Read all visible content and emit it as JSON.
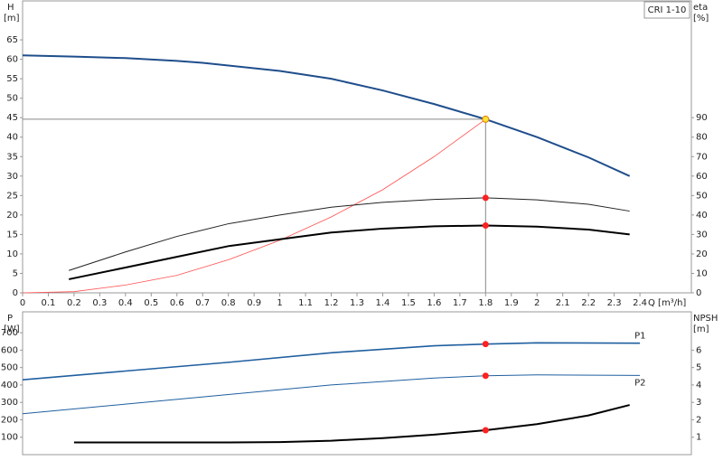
{
  "chart_data": [
    {
      "type": "line",
      "label": "CRI 1-10",
      "ylabel": "H",
      "yunit": "[m]",
      "y2label": "eta",
      "y2unit": "[%]",
      "xlabel": "Q [m³/h]",
      "xlim": [
        0,
        2.6
      ],
      "xticks": [
        0,
        0.1,
        0.2,
        0.3,
        0.4,
        0.5,
        0.6,
        0.7,
        0.8,
        0.9,
        1.0,
        1.1,
        1.2,
        1.3,
        1.4,
        1.5,
        1.6,
        1.7,
        1.8,
        1.9,
        2.0,
        2.1,
        2.2,
        2.3,
        2.4
      ],
      "ylim": [
        0,
        75
      ],
      "yticks": [
        0,
        5,
        10,
        15,
        20,
        25,
        30,
        35,
        40,
        45,
        50,
        55,
        60,
        65
      ],
      "y2lim": [
        0,
        150
      ],
      "y2ticks": [
        0,
        10,
        20,
        30,
        40,
        50,
        60,
        70,
        80,
        90
      ],
      "guides": true,
      "series": [
        {
          "color": "#1f4e8c",
          "width": 2,
          "axis": "y",
          "x": [
            0,
            0.2,
            0.4,
            0.6,
            0.7,
            0.8,
            1.0,
            1.2,
            1.4,
            1.6,
            1.8,
            2.0,
            2.2,
            2.36
          ],
          "values": [
            61,
            60.7,
            60.3,
            59.6,
            59.1,
            58.4,
            57,
            55,
            52,
            48.5,
            44.6,
            40,
            34.8,
            30
          ]
        },
        {
          "color": "#ff5050",
          "width": 0.8,
          "axis": "y",
          "x": [
            0,
            0.2,
            0.4,
            0.6,
            0.8,
            1.0,
            1.2,
            1.4,
            1.6,
            1.8
          ],
          "values": [
            0,
            0.3,
            2,
            4.5,
            8.5,
            13.5,
            19.5,
            26.5,
            35,
            44.6
          ]
        },
        {
          "color": "#222222",
          "width": 1,
          "axis": "y2",
          "x": [
            0.18,
            0.4,
            0.6,
            0.8,
            1.0,
            1.2,
            1.4,
            1.6,
            1.8,
            2.0,
            2.2,
            2.36
          ],
          "values": [
            11.5,
            21,
            29,
            35.5,
            40,
            44,
            46.5,
            48,
            48.8,
            47.8,
            45.5,
            42
          ]
        },
        {
          "color": "#000000",
          "width": 2,
          "axis": "y2",
          "x": [
            0.18,
            0.4,
            0.6,
            0.8,
            1.0,
            1.2,
            1.4,
            1.6,
            1.8,
            2.0,
            2.2,
            2.36
          ],
          "values": [
            7,
            13,
            18.5,
            24,
            27.5,
            31,
            33,
            34.2,
            34.6,
            34,
            32.5,
            30
          ]
        }
      ],
      "points": [
        {
          "x": 1.8,
          "y": 44.6,
          "axis": "y",
          "color": "#ffe033"
        },
        {
          "x": 1.8,
          "y": 48.8,
          "axis": "y2",
          "color": "#ff2020"
        },
        {
          "x": 1.8,
          "y": 34.6,
          "axis": "y2",
          "color": "#ff2020"
        }
      ]
    },
    {
      "type": "line",
      "ylabel": "P",
      "yunit": "[W]",
      "y2label": "NPSH",
      "y2unit": "[m]",
      "xlim": [
        0,
        2.6
      ],
      "ylim": [
        0,
        820
      ],
      "yticks": [
        100,
        200,
        300,
        400,
        500,
        600,
        700
      ],
      "y2lim": [
        0,
        8.2
      ],
      "y2ticks": [
        1,
        2,
        3,
        4,
        5,
        6
      ],
      "series": [
        {
          "name": "P1",
          "color": "#1f5fa0",
          "width": 1.6,
          "axis": "y",
          "x": [
            0,
            0.4,
            0.8,
            1.2,
            1.6,
            1.8,
            2.0,
            2.4
          ],
          "values": [
            430,
            480,
            530,
            585,
            625,
            635,
            642,
            640
          ]
        },
        {
          "name": "P2",
          "color": "#1f5fa0",
          "width": 1,
          "axis": "y",
          "x": [
            0,
            0.4,
            0.8,
            1.2,
            1.6,
            1.8,
            2.0,
            2.4
          ],
          "values": [
            235,
            290,
            345,
            400,
            440,
            453,
            458,
            455
          ]
        },
        {
          "color": "#000000",
          "width": 2,
          "axis": "y2",
          "x": [
            0.2,
            0.8,
            1.0,
            1.2,
            1.4,
            1.6,
            1.8,
            2.0,
            2.2,
            2.36
          ],
          "values": [
            0.7,
            0.7,
            0.72,
            0.8,
            0.95,
            1.15,
            1.4,
            1.75,
            2.25,
            2.85
          ]
        }
      ],
      "points": [
        {
          "x": 1.8,
          "y": 635,
          "axis": "y",
          "color": "#ff2020"
        },
        {
          "x": 1.8,
          "y": 453,
          "axis": "y",
          "color": "#ff2020"
        },
        {
          "x": 1.8,
          "y": 1.4,
          "axis": "y2",
          "color": "#ff2020"
        }
      ]
    }
  ]
}
